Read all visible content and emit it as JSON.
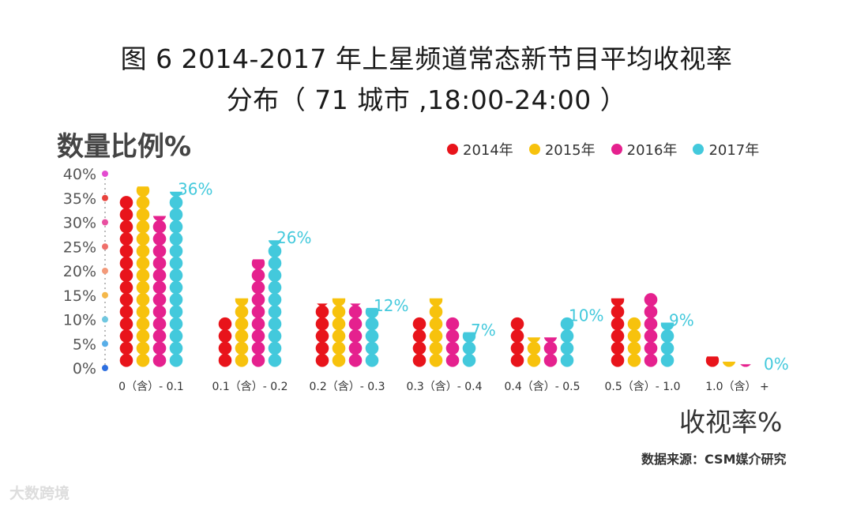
{
  "header": {
    "title_line1": "图 6  2014-2017 年上星频道常态新节目平均收视率",
    "title_line2": "分布（ 71 城市 ,18:00-24:00 ）"
  },
  "footer": {
    "source": "数据来源：CSM媒介研究",
    "watermark": "大数跨境"
  },
  "chart_data": {
    "type": "bar",
    "title": "2014-2017 年上星频道常态新节目平均收视率分布（71 城市,18:00-24:00）",
    "ylabel": "数量比例%",
    "xlabel": "收视率%",
    "ylim": [
      0,
      40
    ],
    "yticks": [
      "0%",
      "5%",
      "10%",
      "15%",
      "20%",
      "25%",
      "30%",
      "35%",
      "40%"
    ],
    "categories": [
      "0（含）- 0.1",
      "0.1（含）- 0.2",
      "0.2（含）- 0.3",
      "0.3（含）- 0.4",
      "0.4（含）- 0.5",
      "0.5（含）- 1.0",
      "1.0（含） +"
    ],
    "series": [
      {
        "name": "2014年",
        "color": "#e8141b",
        "values": [
          35,
          10,
          13,
          10,
          10,
          14,
          2
        ]
      },
      {
        "name": "2015年",
        "color": "#f7c20d",
        "values": [
          37,
          14,
          14,
          14,
          6,
          10,
          1
        ]
      },
      {
        "name": "2016年",
        "color": "#e5218e",
        "values": [
          31,
          22,
          13,
          10,
          6,
          15,
          0.5
        ]
      },
      {
        "name": "2017年",
        "color": "#43c9dc",
        "values": [
          36,
          26,
          12,
          7,
          10,
          9,
          0
        ]
      }
    ],
    "annotations": [
      {
        "category_index": 0,
        "label": "36%"
      },
      {
        "category_index": 1,
        "label": "26%"
      },
      {
        "category_index": 2,
        "label": "12%"
      },
      {
        "category_index": 3,
        "label": "7%"
      },
      {
        "category_index": 4,
        "label": "10%"
      },
      {
        "category_index": 5,
        "label": "9%"
      },
      {
        "category_index": 6,
        "label": "0%"
      }
    ],
    "axis_dot_colors": [
      "#2d6fe0",
      "#58aee8",
      "#6fc7e0",
      "#f5b84a",
      "#f39a7a",
      "#ef6f6a",
      "#e84fa0",
      "#e8433d",
      "#e34bd0"
    ]
  }
}
